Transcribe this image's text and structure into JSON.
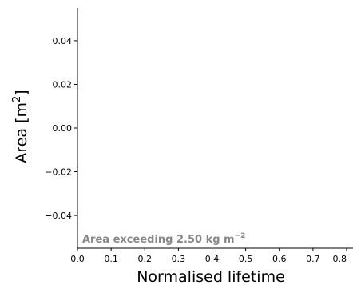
{
  "chart_data": {
    "type": "line",
    "title": "",
    "xlabel": "Normalised lifetime",
    "ylabel_base": "Area [m",
    "ylabel_sup": "2",
    "ylabel_end": "]",
    "xlim": [
      0.0,
      0.8
    ],
    "ylim": [
      -0.055,
      0.055
    ],
    "xticks": [
      0.0,
      0.1,
      0.2,
      0.3,
      0.4,
      0.5,
      0.6,
      0.7,
      0.8
    ],
    "xtick_labels": [
      "0.0",
      "0.1",
      "0.2",
      "0.3",
      "0.4",
      "0.5",
      "0.6",
      "0.7",
      "0.8"
    ],
    "yticks": [
      0.04,
      0.02,
      0.0,
      -0.02,
      -0.04
    ],
    "ytick_labels": [
      "0.04",
      "0.02",
      "0.00",
      "−0.02",
      "−0.04"
    ],
    "grid": false,
    "series": [],
    "annotation": {
      "text_main": "Area exceeding 2.50 kg m",
      "text_sup": "−2",
      "color": "#888888"
    },
    "axis_color": "#000000"
  }
}
